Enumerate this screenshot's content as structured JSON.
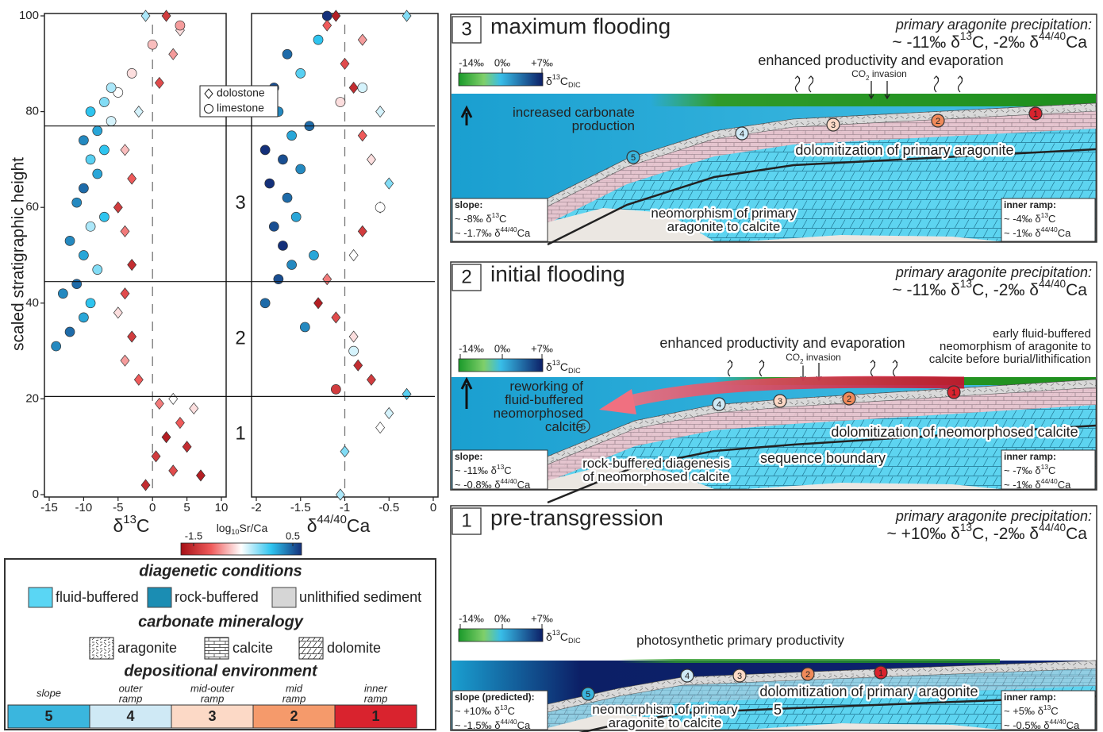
{
  "chart_data": [
    {
      "type": "scatter",
      "ylabel": "scaled stratigraphic height",
      "xlabel": [
        "δ",
        {
          "sup": "13"
        },
        "C"
      ],
      "xlim": [
        -15,
        10
      ],
      "xticks": [
        -15,
        -10,
        -5,
        0,
        5,
        10
      ],
      "ylim": [
        0,
        100
      ],
      "yticks": [
        0,
        20,
        40,
        60,
        80,
        100
      ],
      "vline": 0,
      "zone_bounds": [
        20.5,
        44.5,
        77
      ],
      "zone_labels": [
        "1",
        "2",
        "3"
      ],
      "colorbar": {
        "label": [
          "log",
          {
            "sub": "10"
          },
          "Sr/Ca"
        ],
        "lim": [
          -1.5,
          0.5
        ],
        "ticks": [
          -1.5,
          0.5
        ],
        "colors": [
          "#a50f15",
          "#ef5a5a",
          "#ffffff",
          "#2ec4ef",
          "#14307a"
        ]
      },
      "series": [
        {
          "name": "dolostone",
          "marker": "diamond",
          "x": [
            -1,
            0.5,
            2,
            4,
            6,
            3,
            5,
            7,
            1,
            3,
            -2,
            -4,
            -3,
            -5,
            -4,
            -3,
            -4,
            -5,
            -3,
            -4,
            -2,
            1,
            3,
            4,
            -1,
            2
          ],
          "y": [
            2,
            8,
            12,
            15,
            18,
            5,
            10,
            4,
            19,
            20,
            24,
            28,
            33,
            38,
            42,
            48,
            55,
            60,
            66,
            72,
            80,
            86,
            92,
            97,
            100,
            100
          ],
          "c": [
            -1.3,
            -1.2,
            -1.4,
            -1,
            -0.6,
            -1.1,
            -1.3,
            -1.4,
            -0.9,
            -0.5,
            -1,
            -0.8,
            -1.2,
            -0.6,
            -1.1,
            -1.3,
            -0.9,
            -1.2,
            -1.0,
            -0.7,
            -0.4,
            -1.1,
            -0.8,
            -0.6,
            -0.3,
            -1.2
          ]
        },
        {
          "name": "limestone",
          "marker": "circle",
          "x": [
            -14,
            -12,
            -10,
            -9,
            -13,
            -11,
            -8,
            -10,
            -12,
            -9,
            -7,
            -11,
            -10,
            -8,
            -9,
            -7,
            -10,
            -8,
            -6,
            -9,
            -7,
            -5,
            -6,
            -3,
            0,
            4
          ],
          "y": [
            31,
            34,
            37,
            40,
            42,
            44,
            47,
            50,
            53,
            56,
            58,
            61,
            64,
            67,
            70,
            72,
            74,
            76,
            78,
            80,
            82,
            84,
            85,
            88,
            94,
            98
          ],
          "c": [
            0.2,
            0.3,
            0.1,
            0.0,
            0.2,
            0.3,
            -0.2,
            0.1,
            0.2,
            -0.3,
            0.0,
            0.2,
            0.3,
            0.1,
            -0.1,
            0.0,
            0.2,
            0.1,
            -0.4,
            0.0,
            -0.2,
            -0.5,
            -0.3,
            -0.6,
            -0.7,
            -0.8
          ]
        }
      ]
    },
    {
      "type": "scatter",
      "xlabel": [
        "δ",
        {
          "sup": "44/40"
        },
        "Ca"
      ],
      "xlim": [
        -2,
        0
      ],
      "xticks": [
        -2,
        -1.5,
        -1,
        -0.5,
        0
      ],
      "ylim": [
        0,
        100
      ],
      "vline": -1,
      "series": [
        {
          "marker": "diamond",
          "x": [
            -1.05,
            -1.0,
            -0.6,
            -0.5,
            -0.3,
            -0.7,
            -0.85,
            -0.9,
            -1.1,
            -1.3,
            -1.2,
            -0.9,
            -0.8,
            -0.6,
            -0.5,
            -0.7,
            -0.8,
            -0.6,
            -0.9,
            -1.0,
            -0.8,
            -1.1,
            -0.3,
            -1.2
          ],
          "y": [
            0,
            9,
            14,
            17,
            21,
            24,
            27,
            33,
            37,
            40,
            45,
            50,
            55,
            60,
            65,
            70,
            75,
            80,
            85,
            90,
            95,
            100,
            100,
            98
          ],
          "c": [
            -0.3,
            -0.2,
            -0.5,
            -0.4,
            -0.1,
            -1.2,
            -1.3,
            -0.6,
            -1.1,
            -1.4,
            -0.9,
            -0.5,
            -1.2,
            -0.3,
            -0.2,
            -0.6,
            -1.0,
            -0.4,
            -1.3,
            -1.1,
            -0.8,
            -1.4,
            -0.2,
            -1.0
          ]
        },
        {
          "marker": "circle",
          "x": [
            -1.9,
            -1.75,
            -1.6,
            -1.7,
            -1.8,
            -1.55,
            -1.65,
            -1.85,
            -1.5,
            -1.7,
            -1.9,
            -1.6,
            -1.4,
            -1.75,
            -1.8,
            -1.5,
            -1.65,
            -1.3,
            -1.2,
            -1.1,
            -0.9,
            -0.6,
            -1.45,
            -1.35,
            -1.05,
            -0.8
          ],
          "y": [
            40,
            45,
            48,
            52,
            56,
            58,
            62,
            65,
            68,
            70,
            72,
            75,
            77,
            80,
            85,
            88,
            92,
            95,
            100,
            22,
            30,
            60,
            35,
            50,
            82,
            85
          ],
          "c": [
            0.3,
            0.4,
            0.2,
            0.5,
            0.4,
            0.1,
            0.3,
            0.5,
            0.2,
            0.4,
            0.5,
            0.1,
            0.3,
            0.2,
            0.4,
            -0.1,
            0.3,
            0.0,
            0.5,
            -1.2,
            -0.4,
            -0.5,
            0.2,
            0.1,
            -0.6,
            -0.4
          ]
        }
      ]
    }
  ],
  "legend_box": {
    "diagenetic_heading": "diagenetic conditions",
    "diagenetic": [
      "fluid-buffered",
      "rock-buffered",
      "unlithified sediment"
    ],
    "mineralogy_heading": "carbonate mineralogy",
    "mineralogy": [
      "aragonite",
      "calcite",
      "dolomite"
    ],
    "environment_heading": "depositional environment",
    "environments": [
      {
        "name": [
          "slope"
        ],
        "code": "5"
      },
      {
        "name": [
          "outer",
          "ramp"
        ],
        "code": "4"
      },
      {
        "name": [
          "mid-outer",
          "ramp"
        ],
        "code": "3"
      },
      {
        "name": [
          "mid",
          "ramp"
        ],
        "code": "2"
      },
      {
        "name": [
          "inner",
          "ramp"
        ],
        "code": "1"
      }
    ]
  },
  "panels": [
    {
      "number": "3",
      "title": "maximum flooding",
      "precip_heading": "primary aragonite precipitation:",
      "precip_values": [
        "~ -11‰ δ",
        {
          "sup": "13"
        },
        "C, -2‰ δ",
        {
          "sup": "44/40"
        },
        "Ca"
      ],
      "dic_scale": {
        "ticks": [
          "-14‰",
          "0‰",
          "+7‰"
        ],
        "label": [
          "δ",
          {
            "sup": "13"
          },
          "C",
          {
            "sub": "DIC"
          }
        ]
      },
      "labels": [
        {
          "lines": [
            "enhanced productivity and evaporation"
          ]
        },
        {
          "lines": [
            [
              "CO",
              {
                "sub": "2"
              },
              " invasion"
            ]
          ]
        },
        {
          "lines": [
            "increased carbonate",
            "production"
          ]
        },
        {
          "lines": [
            "dolomitization of primary aragonite"
          ]
        },
        {
          "lines": [
            "neomorphism of primary",
            "aragonite to calcite"
          ]
        }
      ],
      "slope": {
        "heading": "slope:",
        "lines": [
          [
            "~ -8‰ δ",
            {
              "sup": "13"
            },
            "C"
          ],
          [
            "~ -1.7‰ δ",
            {
              "sup": "44/40"
            },
            "Ca"
          ]
        ]
      },
      "inner": {
        "heading": "inner ramp:",
        "lines": [
          [
            "~ -4‰ δ",
            {
              "sup": "13"
            },
            "C"
          ],
          [
            "~ -1‰ δ",
            {
              "sup": "44/40"
            },
            "Ca"
          ]
        ]
      },
      "sites": [
        "1",
        "2",
        "3",
        "4",
        "5"
      ]
    },
    {
      "number": "2",
      "title": "initial flooding",
      "precip_heading": "primary aragonite precipitation:",
      "precip_values": [
        "~ -11‰ δ",
        {
          "sup": "13"
        },
        "C, -2‰ δ",
        {
          "sup": "44/40"
        },
        "Ca"
      ],
      "dic_scale": {
        "ticks": [
          "-14‰",
          "0‰",
          "+7‰"
        ],
        "label": [
          "δ",
          {
            "sup": "13"
          },
          "C",
          {
            "sub": "DIC"
          }
        ]
      },
      "labels": [
        {
          "lines": [
            "early fluid-buffered",
            "neomorphism of aragonite to",
            "calcite before burial/lithification"
          ]
        },
        {
          "lines": [
            "enhanced productivity and evaporation"
          ]
        },
        {
          "lines": [
            [
              "CO",
              {
                "sub": "2"
              },
              " invasion"
            ]
          ]
        },
        {
          "lines": [
            "reworking of",
            "fluid-buffered",
            "neomorphosed",
            "calcite"
          ]
        },
        {
          "lines": [
            "dolomitization of neomorphosed calcite"
          ]
        },
        {
          "lines": [
            "sequence boundary"
          ]
        },
        {
          "lines": [
            "rock-buffered diagenesis",
            "of neomorphosed calcite"
          ]
        }
      ],
      "slope": {
        "heading": "slope:",
        "lines": [
          [
            "~ -11‰ δ",
            {
              "sup": "13"
            },
            "C"
          ],
          [
            "~ -0.8‰ δ",
            {
              "sup": "44/40"
            },
            "Ca"
          ]
        ]
      },
      "inner": {
        "heading": "inner ramp:",
        "lines": [
          [
            "~ -7‰ δ",
            {
              "sup": "13"
            },
            "C"
          ],
          [
            "~ -1‰ δ",
            {
              "sup": "44/40"
            },
            "Ca"
          ]
        ]
      },
      "sites": [
        "1",
        "2",
        "3",
        "4",
        "5"
      ]
    },
    {
      "number": "1",
      "title": "pre-transgression",
      "precip_heading": "primary aragonite precipitation:",
      "precip_values": [
        "~ +10‰ δ",
        {
          "sup": "13"
        },
        "C,  -2‰ δ",
        {
          "sup": "44/40"
        },
        "Ca"
      ],
      "dic_scale": {
        "ticks": [
          "-14‰",
          "0‰",
          "+7‰"
        ],
        "label": [
          "δ",
          {
            "sup": "13"
          },
          "C",
          {
            "sub": "DIC"
          }
        ]
      },
      "labels": [
        {
          "lines": [
            "photosynthetic primary productivity"
          ]
        },
        {
          "lines": [
            "neomorphism of primary",
            "aragonite to calcite"
          ]
        },
        {
          "lines": [
            "dolomitization of primary aragonite"
          ]
        },
        {
          "lines": [
            "5"
          ]
        }
      ],
      "slope": {
        "heading": "slope (predicted):",
        "lines": [
          [
            "~ +10‰ δ",
            {
              "sup": "13"
            },
            "C"
          ],
          [
            "~ -1.5‰ δ",
            {
              "sup": "44/40"
            },
            "Ca"
          ]
        ]
      },
      "inner": {
        "heading": "inner ramp:",
        "lines": [
          [
            "~ +5‰ δ",
            {
              "sup": "13"
            },
            "C"
          ],
          [
            "~ -0.5‰ δ",
            {
              "sup": "44/40"
            },
            "Ca"
          ]
        ]
      },
      "sites": [
        "1",
        "2",
        "3",
        "4",
        "5"
      ]
    }
  ]
}
